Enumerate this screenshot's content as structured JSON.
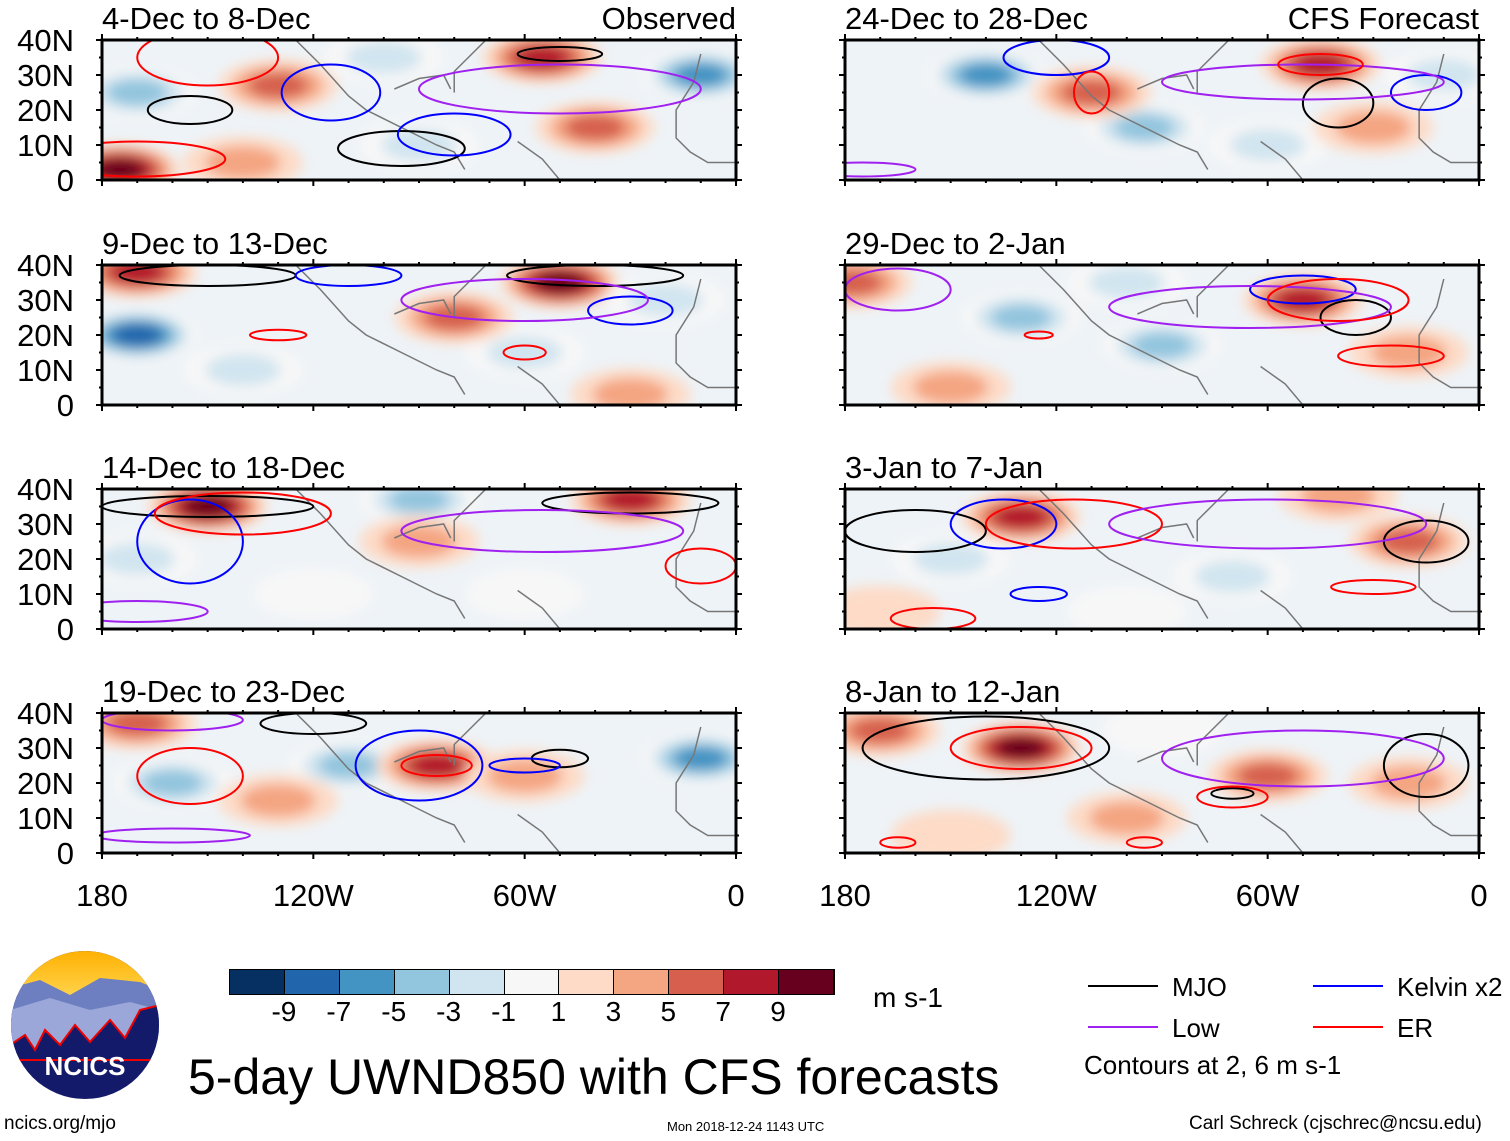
{
  "title": "5-day UWND850 with CFS forecasts",
  "logo_text": "NCICS",
  "footer": {
    "left": "ncics.org/mjo",
    "center": "Mon 2018-12-24 1143 UTC",
    "right": "Carl Schreck (cjschrec@ncsu.edu)"
  },
  "colorbar": {
    "unit": "m s-1",
    "colors": [
      "#053061",
      "#2166ac",
      "#4393c3",
      "#92c5de",
      "#d1e5f0",
      "#f7f7f7",
      "#fddbc7",
      "#f4a582",
      "#d6604d",
      "#b2182b",
      "#67001f"
    ],
    "ticks": [
      "-9",
      "-7",
      "-5",
      "-3",
      "-1",
      "1",
      "3",
      "5",
      "7",
      "9"
    ]
  },
  "legend": {
    "items": [
      {
        "label": "MJO",
        "color": "#000000"
      },
      {
        "label": "Kelvin x2",
        "color": "#0000ff"
      },
      {
        "label": "Low",
        "color": "#a020f0"
      },
      {
        "label": "ER",
        "color": "#ff0000"
      }
    ],
    "note": "Contours at 2, 6 m s-1"
  },
  "axes": {
    "y_ticks": [
      "40N",
      "30N",
      "20N",
      "10N",
      "0"
    ],
    "x_ticks": [
      "180",
      "120W",
      "60W",
      "0"
    ]
  },
  "chart_data": {
    "type": "heatmap",
    "lon_range_west": [
      180,
      0
    ],
    "lat_range": [
      0,
      40
    ],
    "panels": [
      {
        "title": "4-Dec to 8-Dec",
        "label": "Observed",
        "anoms": [
          [
            170,
            25,
            -5
          ],
          [
            130,
            27,
            5
          ],
          [
            175,
            3,
            9
          ],
          [
            55,
            35,
            7
          ],
          [
            10,
            30,
            -7
          ],
          [
            40,
            15,
            5
          ],
          [
            90,
            10,
            -3
          ],
          [
            140,
            5,
            3
          ],
          [
            100,
            35,
            -3
          ]
        ],
        "contours": [
          [
            "mjo",
            155,
            20,
            12,
            4
          ],
          [
            "mjo",
            95,
            9,
            18,
            5
          ],
          [
            "mjo",
            50,
            36,
            12,
            2
          ],
          [
            "kelvin",
            115,
            25,
            14,
            8
          ],
          [
            "kelvin",
            80,
            13,
            16,
            6
          ],
          [
            "low",
            50,
            26,
            40,
            7
          ],
          [
            "er",
            150,
            35,
            20,
            8
          ],
          [
            "er",
            170,
            6,
            25,
            5
          ]
        ]
      },
      {
        "title": "9-Dec to 13-Dec",
        "label": "",
        "anoms": [
          [
            170,
            20,
            -9
          ],
          [
            170,
            38,
            7
          ],
          [
            50,
            35,
            9
          ],
          [
            60,
            15,
            -3
          ],
          [
            80,
            25,
            5
          ],
          [
            30,
            3,
            3
          ],
          [
            140,
            10,
            -3
          ],
          [
            20,
            30,
            -3
          ]
        ],
        "contours": [
          [
            "mjo",
            150,
            37,
            25,
            3
          ],
          [
            "mjo",
            40,
            37,
            25,
            3
          ],
          [
            "kelvin",
            30,
            27,
            12,
            4
          ],
          [
            "kelvin",
            110,
            37,
            15,
            3
          ],
          [
            "low",
            60,
            30,
            35,
            6
          ],
          [
            "er",
            130,
            20,
            8,
            1.5
          ],
          [
            "er",
            60,
            15,
            6,
            2
          ]
        ]
      },
      {
        "title": "14-Dec to 18-Dec",
        "label": "",
        "anoms": [
          [
            150,
            35,
            9
          ],
          [
            90,
            37,
            -5
          ],
          [
            30,
            37,
            7
          ],
          [
            170,
            20,
            -3
          ],
          [
            90,
            25,
            3
          ],
          [
            60,
            10,
            -2
          ],
          [
            120,
            10,
            -2
          ]
        ],
        "contours": [
          [
            "mjo",
            150,
            35,
            30,
            3
          ],
          [
            "mjo",
            30,
            36,
            25,
            3
          ],
          [
            "kelvin",
            155,
            25,
            15,
            12
          ],
          [
            "er",
            140,
            33,
            25,
            6
          ],
          [
            "low",
            170,
            5,
            20,
            3
          ],
          [
            "low",
            55,
            28,
            40,
            6
          ],
          [
            "er",
            10,
            18,
            10,
            5
          ]
        ]
      },
      {
        "title": "19-Dec to 23-Dec",
        "label": "",
        "anoms": [
          [
            170,
            37,
            5
          ],
          [
            160,
            20,
            -5
          ],
          [
            110,
            25,
            -5
          ],
          [
            85,
            25,
            7
          ],
          [
            10,
            27,
            -7
          ],
          [
            130,
            15,
            3
          ],
          [
            60,
            22,
            3
          ]
        ],
        "contours": [
          [
            "mjo",
            120,
            37,
            15,
            3
          ],
          [
            "mjo",
            50,
            27,
            8,
            2.5
          ],
          [
            "kelvin",
            90,
            25,
            18,
            10
          ],
          [
            "kelvin",
            60,
            25,
            10,
            2
          ],
          [
            "low",
            160,
            38,
            20,
            3
          ],
          [
            "er",
            155,
            22,
            15,
            8
          ],
          [
            "er",
            85,
            25,
            10,
            3
          ],
          [
            "low",
            160,
            5,
            22,
            2
          ]
        ]
      },
      {
        "title": "24-Dec to 28-Dec",
        "label": "CFS Forecast",
        "anoms": [
          [
            140,
            30,
            -7
          ],
          [
            95,
            15,
            -5
          ],
          [
            45,
            33,
            7
          ],
          [
            110,
            25,
            5
          ],
          [
            10,
            30,
            -3
          ],
          [
            60,
            10,
            -3
          ],
          [
            30,
            15,
            3
          ]
        ],
        "contours": [
          [
            "mjo",
            40,
            22,
            10,
            7
          ],
          [
            "kelvin",
            120,
            35,
            15,
            5
          ],
          [
            "kelvin",
            15,
            25,
            10,
            5
          ],
          [
            "low",
            50,
            28,
            40,
            5
          ],
          [
            "er",
            110,
            25,
            5,
            6
          ],
          [
            "er",
            45,
            33,
            12,
            3
          ],
          [
            "low",
            175,
            3,
            15,
            2
          ]
        ]
      },
      {
        "title": "29-Dec to 2-Jan",
        "label": "",
        "anoms": [
          [
            130,
            25,
            -5
          ],
          [
            90,
            17,
            -5
          ],
          [
            50,
            30,
            7
          ],
          [
            20,
            15,
            3
          ],
          [
            178,
            35,
            5
          ],
          [
            150,
            5,
            3
          ],
          [
            100,
            35,
            -3
          ]
        ],
        "contours": [
          [
            "mjo",
            35,
            25,
            10,
            5
          ],
          [
            "kelvin",
            50,
            33,
            15,
            4
          ],
          [
            "low",
            65,
            28,
            40,
            6
          ],
          [
            "low",
            165,
            33,
            15,
            6
          ],
          [
            "er",
            40,
            30,
            20,
            6
          ],
          [
            "er",
            25,
            14,
            15,
            3
          ],
          [
            "er",
            125,
            20,
            4,
            1
          ]
        ]
      },
      {
        "title": "3-Jan to 7-Jan",
        "label": "",
        "anoms": [
          [
            130,
            32,
            7
          ],
          [
            150,
            20,
            -3
          ],
          [
            20,
            25,
            5
          ],
          [
            70,
            15,
            -3
          ],
          [
            40,
            38,
            3
          ],
          [
            100,
            5,
            -2
          ],
          [
            170,
            5,
            2
          ]
        ],
        "contours": [
          [
            "mjo",
            160,
            28,
            20,
            6
          ],
          [
            "mjo",
            15,
            25,
            12,
            6
          ],
          [
            "kelvin",
            135,
            30,
            15,
            7
          ],
          [
            "kelvin",
            125,
            10,
            8,
            2
          ],
          [
            "er",
            115,
            30,
            25,
            7
          ],
          [
            "low",
            60,
            30,
            45,
            7
          ],
          [
            "er",
            155,
            3,
            12,
            3
          ],
          [
            "er",
            30,
            12,
            12,
            2
          ]
        ]
      },
      {
        "title": "8-Jan to 12-Jan",
        "label": "",
        "anoms": [
          [
            130,
            30,
            9
          ],
          [
            60,
            22,
            5
          ],
          [
            170,
            35,
            5
          ],
          [
            100,
            10,
            3
          ],
          [
            150,
            5,
            2
          ],
          [
            20,
            20,
            3
          ],
          [
            90,
            35,
            -2
          ]
        ],
        "contours": [
          [
            "mjo",
            140,
            30,
            35,
            9
          ],
          [
            "mjo",
            15,
            25,
            12,
            9
          ],
          [
            "mjo",
            70,
            17,
            6,
            1.5
          ],
          [
            "er",
            130,
            30,
            20,
            6
          ],
          [
            "er",
            70,
            16,
            10,
            3
          ],
          [
            "low",
            50,
            27,
            40,
            8
          ],
          [
            "er",
            165,
            3,
            5,
            1.5
          ],
          [
            "er",
            95,
            3,
            5,
            1.5
          ]
        ]
      }
    ]
  }
}
